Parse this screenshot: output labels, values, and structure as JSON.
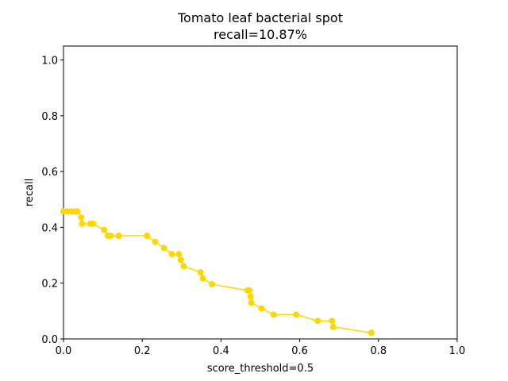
{
  "chart_data": {
    "type": "line",
    "title": "Tomato leaf bacterial spot",
    "subtitle": "recall=10.87%",
    "xlabel": "score_threshold=0.5",
    "ylabel": "recall",
    "xlim": [
      0.0,
      1.0
    ],
    "ylim": [
      0.0,
      1.05
    ],
    "xticks": [
      "0.0",
      "0.2",
      "0.4",
      "0.6",
      "0.8",
      "1.0"
    ],
    "yticks": [
      "0.0",
      "0.2",
      "0.4",
      "0.6",
      "0.8",
      "1.0"
    ],
    "grid": false,
    "color": "#FFD700",
    "series": [
      {
        "x": [
          0.0,
          0.01,
          0.02,
          0.03,
          0.035,
          0.045,
          0.047,
          0.068,
          0.075,
          0.103,
          0.113,
          0.12,
          0.14,
          0.212,
          0.233,
          0.255,
          0.275,
          0.293,
          0.298,
          0.305,
          0.348,
          0.354,
          0.377,
          0.467,
          0.472,
          0.475,
          0.477,
          0.503,
          0.534,
          0.591,
          0.646,
          0.682,
          0.685,
          0.782
        ],
        "y": [
          0.457,
          0.457,
          0.457,
          0.457,
          0.457,
          0.435,
          0.413,
          0.413,
          0.413,
          0.391,
          0.37,
          0.37,
          0.37,
          0.37,
          0.348,
          0.326,
          0.304,
          0.304,
          0.283,
          0.261,
          0.239,
          0.217,
          0.196,
          0.174,
          0.174,
          0.152,
          0.13,
          0.109,
          0.087,
          0.087,
          0.065,
          0.065,
          0.043,
          0.022
        ]
      }
    ]
  }
}
